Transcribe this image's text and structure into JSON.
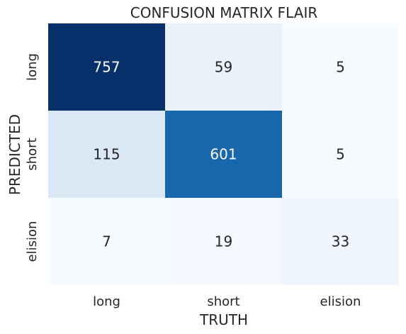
{
  "chart_data": {
    "type": "heatmap",
    "title": "CONFUSION MATRIX FLAIR",
    "xlabel": "TRUTH",
    "ylabel": "PREDICTED",
    "x_categories": [
      "long",
      "short",
      "elision"
    ],
    "y_categories": [
      "long",
      "short",
      "elision"
    ],
    "values": [
      [
        757,
        59,
        5
      ],
      [
        115,
        601,
        5
      ],
      [
        7,
        19,
        33
      ]
    ],
    "colormap": "Blues",
    "color_low": "#f7fbff",
    "color_high": "#08306b",
    "colorbar": false
  }
}
